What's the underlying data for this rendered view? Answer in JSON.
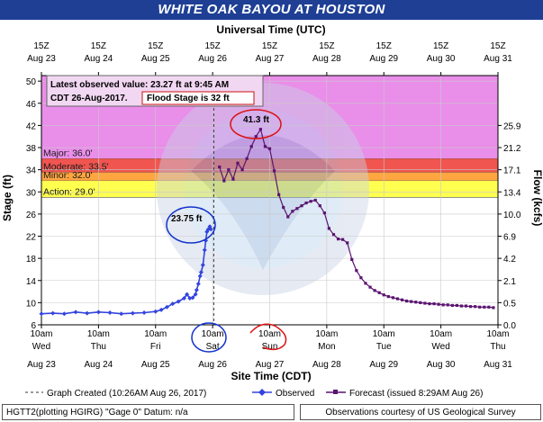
{
  "title": "WHITE OAK BAYOU AT HOUSTON",
  "top_axis_title": "Universal Time (UTC)",
  "bottom_axis_title": "Site Time (CDT)",
  "left_axis_title": "Stage (ft)",
  "right_axis_title": "Flow (kcfs)",
  "top_ticks": [
    {
      "l1": "15Z",
      "l2": "Aug 23"
    },
    {
      "l1": "15Z",
      "l2": "Aug 24"
    },
    {
      "l1": "15Z",
      "l2": "Aug 25"
    },
    {
      "l1": "15Z",
      "l2": "Aug 26"
    },
    {
      "l1": "15Z",
      "l2": "Aug 27"
    },
    {
      "l1": "15Z",
      "l2": "Aug 28"
    },
    {
      "l1": "15Z",
      "l2": "Aug 29"
    },
    {
      "l1": "15Z",
      "l2": "Aug 30"
    },
    {
      "l1": "15Z",
      "l2": "Aug 31"
    }
  ],
  "bottom_ticks": [
    {
      "l1": "10am",
      "l2": "Wed",
      "l3": "Aug 23"
    },
    {
      "l1": "10am",
      "l2": "Thu",
      "l3": "Aug 24"
    },
    {
      "l1": "10am",
      "l2": "Fri",
      "l3": "Aug 25"
    },
    {
      "l1": "10am",
      "l2": "Sat",
      "l3": "Aug 26"
    },
    {
      "l1": "10am",
      "l2": "Sun",
      "l3": "Aug 27"
    },
    {
      "l1": "10am",
      "l2": "Mon",
      "l3": "Aug 28"
    },
    {
      "l1": "10am",
      "l2": "Tue",
      "l3": "Aug 29"
    },
    {
      "l1": "10am",
      "l2": "Wed",
      "l3": "Aug 30"
    },
    {
      "l1": "10am",
      "l2": "Thu",
      "l3": "Aug 31"
    }
  ],
  "flood_categories": [
    {
      "label": "Major: 36.0'",
      "from": 36,
      "to": 51,
      "color": "#e98ee9"
    },
    {
      "label": "Moderate: 33.5'",
      "from": 33.5,
      "to": 36,
      "color": "#f0554f"
    },
    {
      "label": "Minor: 32.0'",
      "from": 32,
      "to": 33.5,
      "color": "#ffa640"
    },
    {
      "label": "Action: 29.0'",
      "from": 29,
      "to": 32,
      "color": "#ffff50"
    }
  ],
  "info_box": {
    "line1": "Latest observed value: 23.27 ft at 9:45 AM",
    "line2": "CDT 26-Aug-2017.",
    "flood_stage": "Flood Stage is 32  ft"
  },
  "annotations": {
    "observed_peak": "23.75 ft",
    "forecast_peak": "41.3 ft"
  },
  "legend": {
    "created": "Graph Created (10:26AM Aug 26, 2017)",
    "observed": "Observed",
    "forecast": "Forecast (issued 8:29AM Aug 26)"
  },
  "footer": {
    "left": "HGTT2(plotting HGIRG) \"Gage 0\" Datum: n/a",
    "right": "Observations courtesy of US Geological Survey"
  },
  "colors": {
    "observed": "#3344dd",
    "forecast": "#5a1470",
    "annotation_red": "#dd1111",
    "annotation_blue": "#1133cc"
  },
  "chart_data": {
    "type": "line",
    "x_unit": "days since Aug 23 10am CDT",
    "xlim": [
      0,
      8
    ],
    "y_left_ticks": [
      6,
      10,
      14,
      18,
      22,
      26,
      30,
      34,
      38,
      42,
      46,
      50
    ],
    "ylim": [
      6,
      51
    ],
    "y_right_labels": [
      {
        "stage": 6,
        "flow": "0.0"
      },
      {
        "stage": 10,
        "flow": "0.5"
      },
      {
        "stage": 14,
        "flow": "2.1"
      },
      {
        "stage": 18,
        "flow": "4.2"
      },
      {
        "stage": 22,
        "flow": "6.9"
      },
      {
        "stage": 26,
        "flow": "10.0"
      },
      {
        "stage": 30,
        "flow": "13.4"
      },
      {
        "stage": 34,
        "flow": "17.1"
      },
      {
        "stage": 38,
        "flow": "21.2"
      },
      {
        "stage": 42,
        "flow": "25.9"
      }
    ],
    "graph_created_x": 3.02,
    "series": [
      {
        "name": "Observed",
        "x": [
          0,
          0.2,
          0.4,
          0.6,
          0.8,
          1.0,
          1.2,
          1.4,
          1.6,
          1.8,
          2.0,
          2.1,
          2.2,
          2.3,
          2.4,
          2.5,
          2.55,
          2.6,
          2.65,
          2.7,
          2.72,
          2.75,
          2.78,
          2.8,
          2.83,
          2.86,
          2.88,
          2.9,
          2.92,
          2.95,
          2.97
        ],
        "y": [
          8.0,
          8.1,
          8.0,
          8.3,
          8.1,
          8.3,
          8.2,
          8.0,
          8.1,
          8.2,
          8.4,
          8.7,
          9.2,
          9.8,
          10.2,
          10.8,
          11.5,
          10.8,
          10.9,
          11.5,
          12.3,
          13.4,
          14.8,
          15.5,
          16.8,
          19.5,
          21.2,
          22.8,
          23.2,
          23.75,
          23.27
        ]
      },
      {
        "name": "Forecast",
        "x": [
          3.12,
          3.2,
          3.28,
          3.36,
          3.44,
          3.52,
          3.6,
          3.68,
          3.76,
          3.84,
          3.92,
          4.0,
          4.08,
          4.16,
          4.24,
          4.32,
          4.4,
          4.48,
          4.56,
          4.64,
          4.72,
          4.8,
          4.88,
          4.96,
          5.04,
          5.12,
          5.2,
          5.28,
          5.36,
          5.44,
          5.52,
          5.6,
          5.68,
          5.76,
          5.84,
          5.92,
          6.0,
          6.08,
          6.16,
          6.24,
          6.32,
          6.4,
          6.48,
          6.56,
          6.64,
          6.72,
          6.8,
          6.88,
          6.96,
          7.04,
          7.12,
          7.2,
          7.28,
          7.36,
          7.44,
          7.52,
          7.6,
          7.68,
          7.76,
          7.84,
          7.92
        ],
        "y": [
          34.5,
          32.0,
          34.0,
          32.3,
          35.2,
          34.0,
          36.0,
          38.2,
          40.0,
          41.3,
          38.2,
          37.8,
          33.8,
          29.5,
          27.2,
          25.5,
          26.5,
          27.0,
          27.5,
          28.0,
          28.3,
          28.5,
          27.5,
          26.2,
          23.4,
          22.3,
          21.5,
          21.4,
          20.8,
          17.8,
          15.8,
          14.5,
          13.5,
          12.8,
          12.2,
          11.8,
          11.4,
          11.1,
          10.9,
          10.7,
          10.5,
          10.3,
          10.2,
          10.1,
          10.0,
          9.9,
          9.8,
          9.8,
          9.7,
          9.6,
          9.6,
          9.5,
          9.5,
          9.4,
          9.4,
          9.3,
          9.3,
          9.2,
          9.2,
          9.2,
          9.1
        ]
      }
    ]
  }
}
